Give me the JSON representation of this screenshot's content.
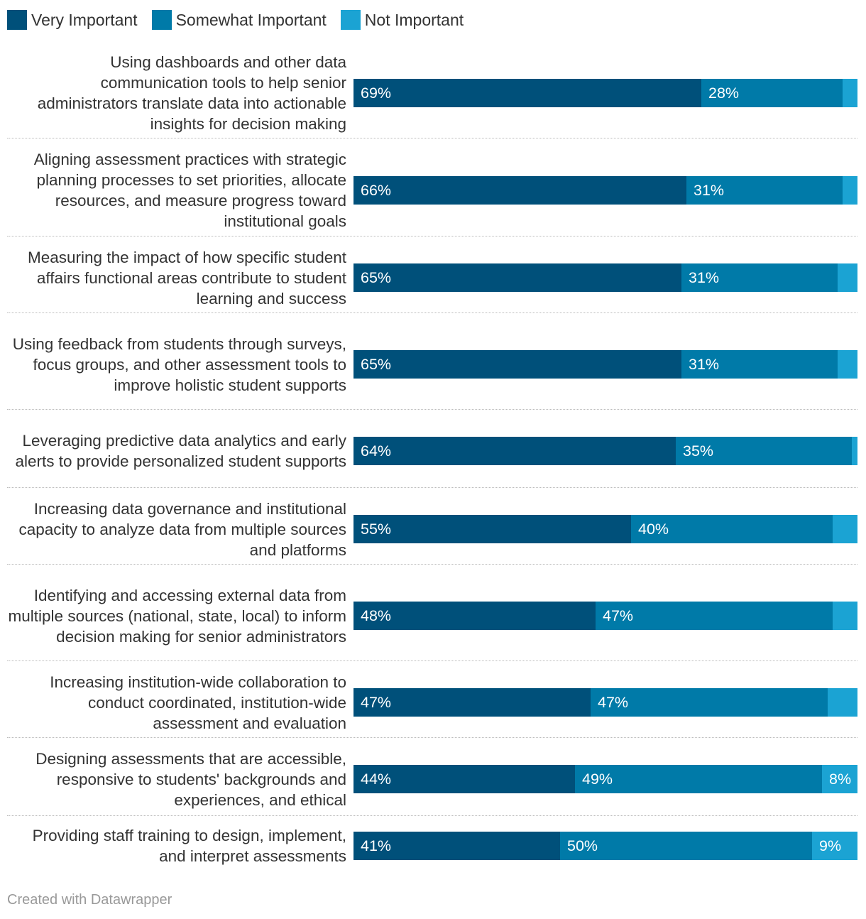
{
  "legend": [
    {
      "label": "Very Important",
      "color": "#00507a"
    },
    {
      "label": "Somewhat Important",
      "color": "#007aa8"
    },
    {
      "label": "Not Important",
      "color": "#1ba3d3"
    }
  ],
  "chart_data": {
    "type": "bar",
    "orientation": "horizontal",
    "stacked": true,
    "title": "",
    "xlabel": "",
    "ylabel": "",
    "xlim": [
      0,
      100
    ],
    "legend_position": "top-left",
    "categories": [
      "Using dashboards and other data communication tools to help senior administrators translate data into actionable insights for decision making",
      "Aligning assessment practices with strategic planning processes to set priorities, allocate resources, and measure progress toward institutional goals",
      "Measuring the impact of how specific student affairs functional areas contribute to student learning and success",
      "Using feedback from students through surveys, focus groups, and other assessment tools to improve holistic student supports",
      "Leveraging predictive data analytics and early alerts to provide personalized student supports",
      "Increasing data governance and institutional capacity to analyze data from multiple sources and platforms",
      "Identifying and accessing external data from multiple sources (national, state, local) to inform decision making for senior administrators",
      "Increasing institution-wide collaboration to conduct coordinated, institution-wide assessment and evaluation",
      "Designing assessments that are accessible, responsive to students' backgrounds and experiences, and ethical",
      "Providing staff training to design, implement, and interpret assessments"
    ],
    "series": [
      {
        "name": "Very Important",
        "color": "#00507a",
        "values": [
          69,
          66,
          65,
          65,
          64,
          55,
          48,
          47,
          44,
          41
        ],
        "labels": [
          "69%",
          "66%",
          "65%",
          "65%",
          "64%",
          "55%",
          "48%",
          "47%",
          "44%",
          "41%"
        ]
      },
      {
        "name": "Somewhat Important",
        "color": "#007aa8",
        "values": [
          28,
          31,
          31,
          31,
          35,
          40,
          47,
          47,
          49,
          50
        ],
        "labels": [
          "28%",
          "31%",
          "31%",
          "31%",
          "35%",
          "40%",
          "47%",
          "47%",
          "49%",
          "50%"
        ]
      },
      {
        "name": "Not Important",
        "color": "#1ba3d3",
        "values": [
          4,
          3,
          3,
          4,
          1,
          5,
          5,
          6,
          8,
          9
        ],
        "labels": [
          "",
          "",
          "",
          "",
          "",
          "",
          "",
          "",
          "8%",
          "9%"
        ]
      }
    ]
  },
  "footer": "Created with Datawrapper"
}
